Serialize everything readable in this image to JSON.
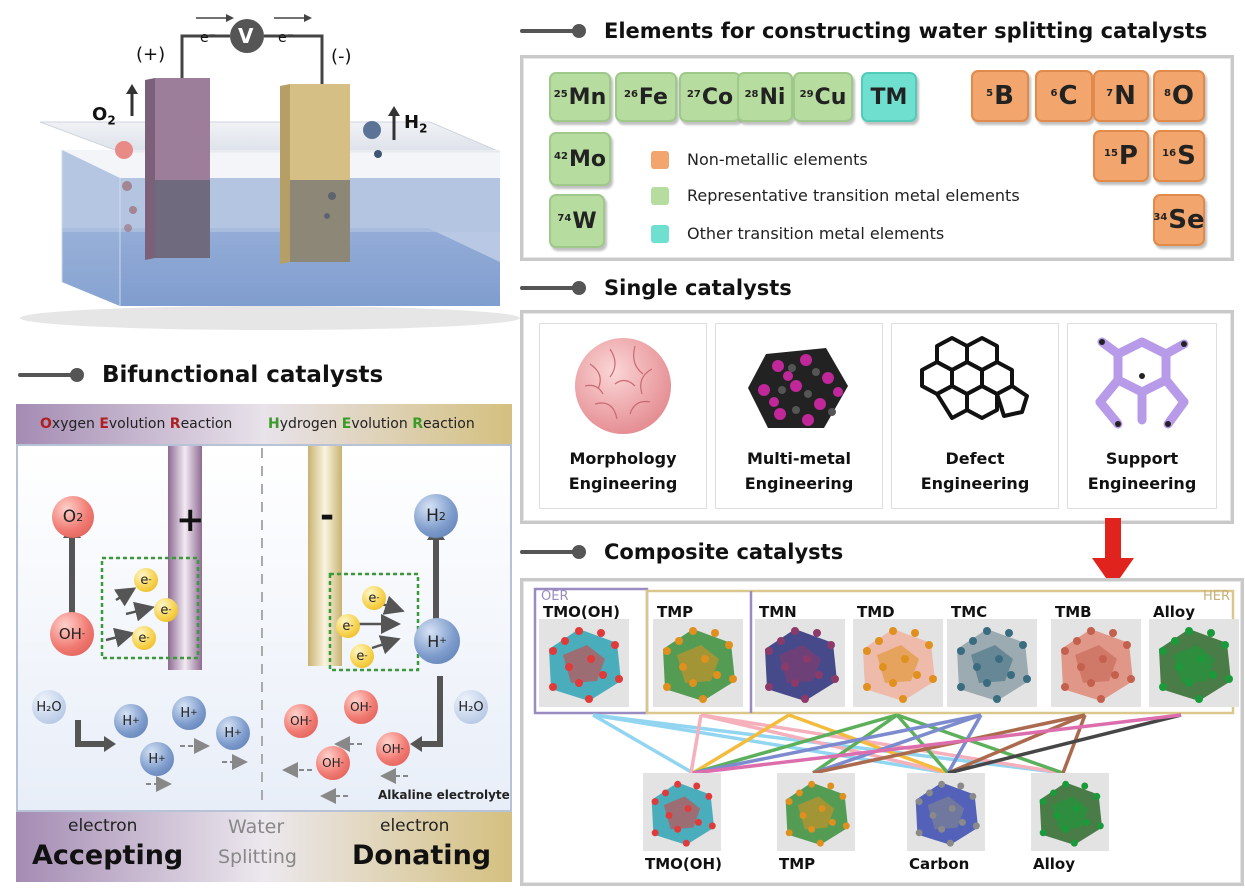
{
  "cell": {
    "volt_label": "V",
    "electron_left": "e⁻",
    "electron_right": "e⁻",
    "anode_sign": "(+)",
    "cathode_sign": "(-)",
    "o2_label": "O",
    "o2_sub": "2",
    "h2_label": "H",
    "h2_sub": "2"
  },
  "elements": {
    "title": "Elements for constructing water splitting catalysts",
    "tiles": [
      {
        "num": "25",
        "sym": "Mn",
        "group": "representative"
      },
      {
        "num": "26",
        "sym": "Fe",
        "group": "representative"
      },
      {
        "num": "27",
        "sym": "Co",
        "group": "representative"
      },
      {
        "num": "28",
        "sym": "Ni",
        "group": "representative"
      },
      {
        "num": "29",
        "sym": "Cu",
        "group": "representative"
      },
      {
        "num": "",
        "sym": "TM",
        "group": "other"
      },
      {
        "num": "42",
        "sym": "Mo",
        "group": "representative"
      },
      {
        "num": "74",
        "sym": "W",
        "group": "representative"
      },
      {
        "num": "5",
        "sym": "B",
        "group": "non-metallic"
      },
      {
        "num": "6",
        "sym": "C",
        "group": "non-metallic"
      },
      {
        "num": "7",
        "sym": "N",
        "group": "non-metallic"
      },
      {
        "num": "8",
        "sym": "O",
        "group": "non-metallic"
      },
      {
        "num": "15",
        "sym": "P",
        "group": "non-metallic"
      },
      {
        "num": "16",
        "sym": "S",
        "group": "non-metallic"
      },
      {
        "num": "34",
        "sym": "Se",
        "group": "non-metallic"
      }
    ],
    "legend": [
      {
        "label": "Non-metallic elements",
        "color": "#f2a56c"
      },
      {
        "label": "Representative transition metal elements",
        "color": "#b7dca0"
      },
      {
        "label": "Other transition metal elements",
        "color": "#6fe0cf"
      }
    ]
  },
  "single": {
    "title": "Single catalysts",
    "cards": [
      {
        "line1": "Morphology",
        "line2": "Engineering"
      },
      {
        "line1": "Multi-metal",
        "line2": "Engineering"
      },
      {
        "line1": "Defect",
        "line2": "Engineering"
      },
      {
        "line1": "Support",
        "line2": "Engineering"
      }
    ]
  },
  "composite": {
    "title": "Composite catalysts",
    "oer_tag": "OER",
    "her_tag": "HER",
    "top": [
      "TMO(OH)",
      "TMP",
      "TMN",
      "TMD",
      "TMC",
      "TMB",
      "Alloy"
    ],
    "bottom": [
      "TMO(OH)",
      "TMP",
      "Carbon",
      "Alloy"
    ]
  },
  "bifunctional": {
    "title": "Bifunctional catalysts",
    "oer": {
      "O": "O",
      "rest1": "xygen ",
      "E": "E",
      "rest2": "volution ",
      "R": "R",
      "rest3": "eaction"
    },
    "her": {
      "H": "H",
      "rest1": "ydrogen ",
      "E": "E",
      "rest2": "volution ",
      "R": "R",
      "rest3": "eaction"
    },
    "plus": "+",
    "minus": "-",
    "o2": "O",
    "h2": "H",
    "sub2": "2",
    "oh": "OH",
    "hplus": "H",
    "h2o": "H₂O",
    "e": "e",
    "electrolyte": "Alkaline electrolyte",
    "bottom_left_small": "electron",
    "bottom_left_big": "Accepting",
    "bottom_mid1": "Water",
    "bottom_mid2": "Splitting",
    "bottom_right_small": "electron",
    "bottom_right_big": "Donating"
  },
  "colors": {
    "oer_red": "#b02020",
    "her_green": "#3a9a2a",
    "arrow_red": "#e0231c"
  }
}
